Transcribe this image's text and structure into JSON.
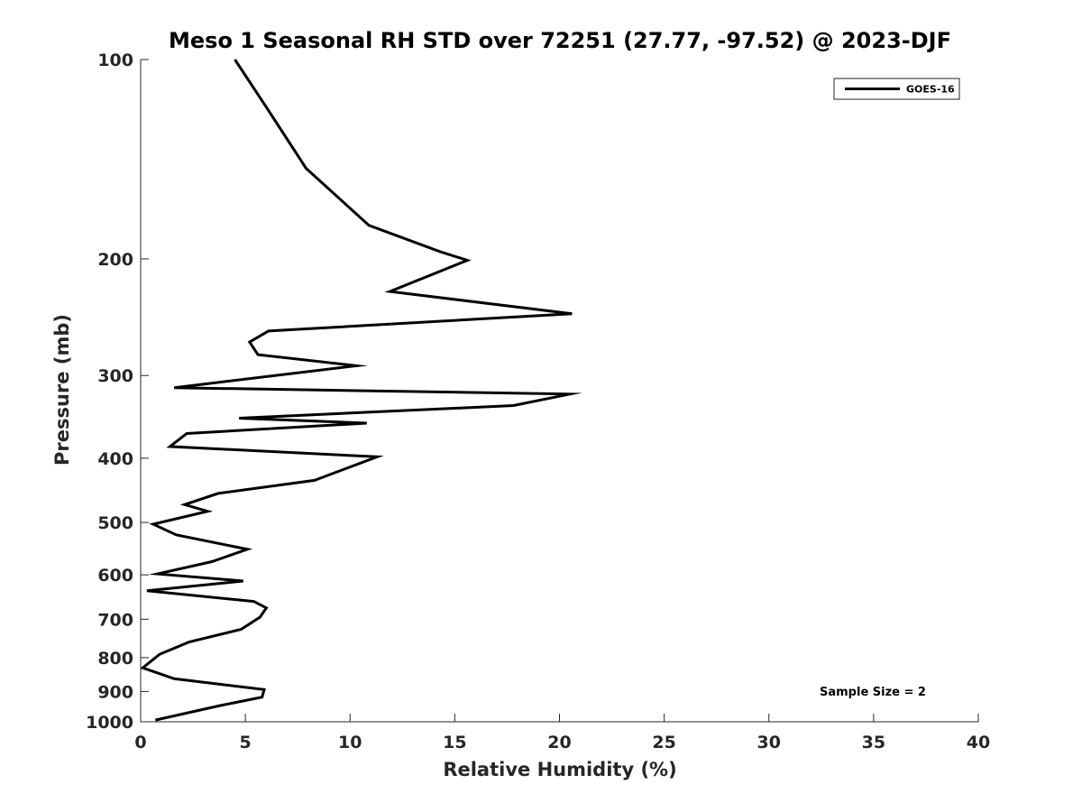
{
  "chart_data": {
    "type": "line",
    "title": "Meso 1 Seasonal RH STD over 72251 (27.77, -97.52) @ 2023-DJF",
    "xlabel": "Relative Humidity (%)",
    "ylabel": "Pressure (mb)",
    "xlim": [
      0,
      40
    ],
    "ylim": [
      100,
      1000
    ],
    "yscale": "log",
    "y_reversed": true,
    "x_ticks": [
      0,
      5,
      10,
      15,
      20,
      25,
      30,
      35,
      40
    ],
    "x_tick_labels": [
      "0",
      "5",
      "10",
      "15",
      "20",
      "25",
      "30",
      "35",
      "40"
    ],
    "y_ticks": [
      100,
      200,
      300,
      400,
      500,
      600,
      700,
      800,
      900,
      1000
    ],
    "y_tick_labels": [
      "100",
      "200",
      "300",
      "400",
      "500",
      "600",
      "700",
      "800",
      "900",
      "1000"
    ],
    "grid": false,
    "legend_position": "top-right",
    "annotation": "Sample Size = 2",
    "series": [
      {
        "name": "GOES-16",
        "color": "#000000",
        "x": [
          4.5,
          6.0,
          7.9,
          10.9,
          14.3,
          15.6,
          11.9,
          20.6,
          6.1,
          5.2,
          5.6,
          10.3,
          1.6,
          20.5,
          17.8,
          4.7,
          10.8,
          2.2,
          1.4,
          11.3,
          8.3,
          3.7,
          2.1,
          3.2,
          0.6,
          1.7,
          5.1,
          3.4,
          0.8,
          4.9,
          0.3,
          5.4,
          6.0,
          5.7,
          4.8,
          2.3,
          0.9,
          0.1,
          1.6,
          5.9,
          5.8,
          3.8,
          0.7
        ],
        "y": [
          100,
          118,
          146,
          178,
          195,
          201,
          224,
          242,
          257,
          267,
          279,
          290,
          313,
          320,
          333,
          348,
          354,
          367,
          384,
          398,
          432,
          452,
          470,
          481,
          503,
          522,
          549,
          573,
          598,
          613,
          634,
          658,
          673,
          695,
          725,
          758,
          791,
          829,
          861,
          894,
          918,
          945,
          994
        ]
      }
    ]
  }
}
